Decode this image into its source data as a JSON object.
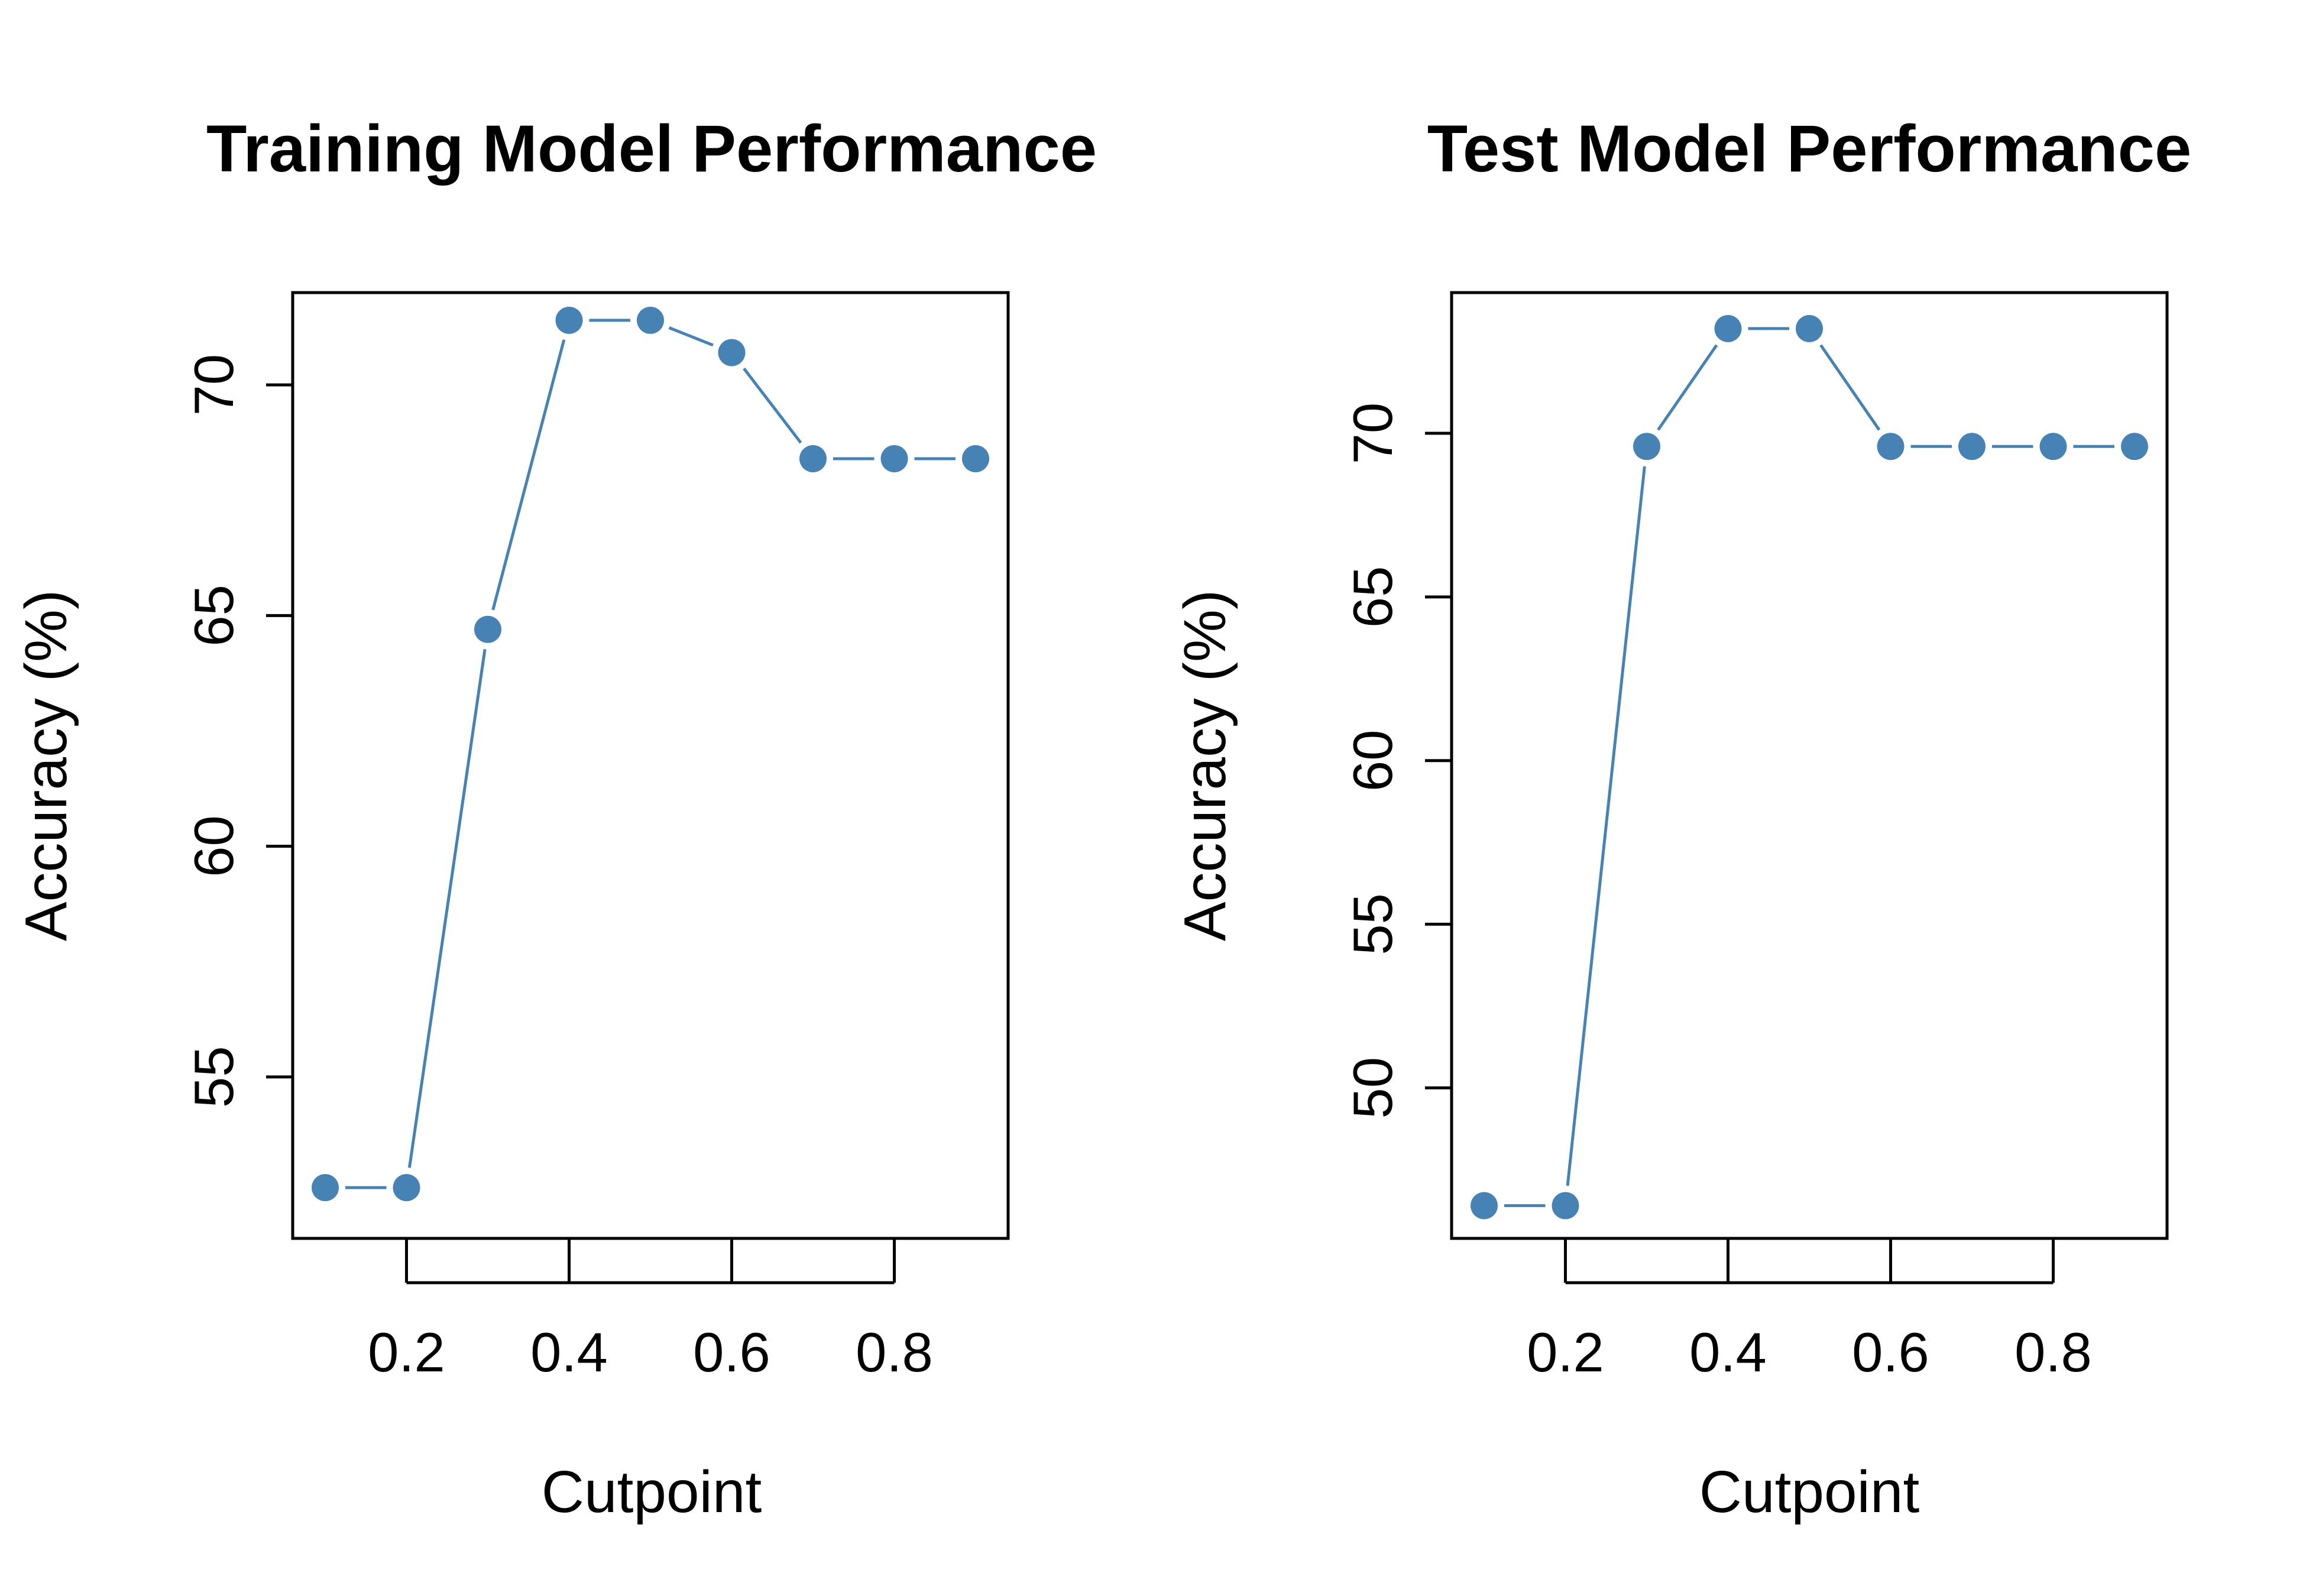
{
  "chart_data": [
    {
      "type": "line",
      "title": "Training Model Performance",
      "xlabel": "Cutpoint",
      "ylabel": "Accuracy (%)",
      "xlim": [
        0.06,
        0.94
      ],
      "ylim": [
        51.5,
        72.0
      ],
      "x_ticks": [
        0.2,
        0.4,
        0.6,
        0.8
      ],
      "x_tick_labels": [
        "0.2",
        "0.4",
        "0.6",
        "0.8"
      ],
      "y_ticks": [
        55,
        60,
        65,
        70
      ],
      "y_tick_labels": [
        "55",
        "60",
        "65",
        "70"
      ],
      "grid": false,
      "legend": "none",
      "line_style": "b",
      "color": "#4682B4",
      "series": [
        {
          "x": [
            0.1,
            0.2,
            0.3,
            0.4,
            0.5,
            0.6,
            0.7,
            0.8,
            0.9
          ],
          "y": [
            52.6,
            52.6,
            64.7,
            71.4,
            71.4,
            70.7,
            68.4,
            68.4,
            68.4
          ]
        }
      ]
    },
    {
      "type": "line",
      "title": "Test Model Performance",
      "xlabel": "Cutpoint",
      "ylabel": "Accuracy (%)",
      "xlim": [
        0.06,
        0.94
      ],
      "ylim": [
        45.4,
        74.3
      ],
      "x_ticks": [
        0.2,
        0.4,
        0.6,
        0.8
      ],
      "x_tick_labels": [
        "0.2",
        "0.4",
        "0.6",
        "0.8"
      ],
      "y_ticks": [
        50,
        55,
        60,
        65,
        70
      ],
      "y_tick_labels": [
        "50",
        "55",
        "60",
        "65",
        "70"
      ],
      "grid": false,
      "legend": "none",
      "line_style": "b",
      "color": "#4682B4",
      "series": [
        {
          "x": [
            0.1,
            0.2,
            0.3,
            0.4,
            0.5,
            0.6,
            0.7,
            0.8,
            0.9
          ],
          "y": [
            46.4,
            46.4,
            69.6,
            73.2,
            73.2,
            69.6,
            69.6,
            69.6,
            69.6
          ]
        }
      ]
    }
  ]
}
